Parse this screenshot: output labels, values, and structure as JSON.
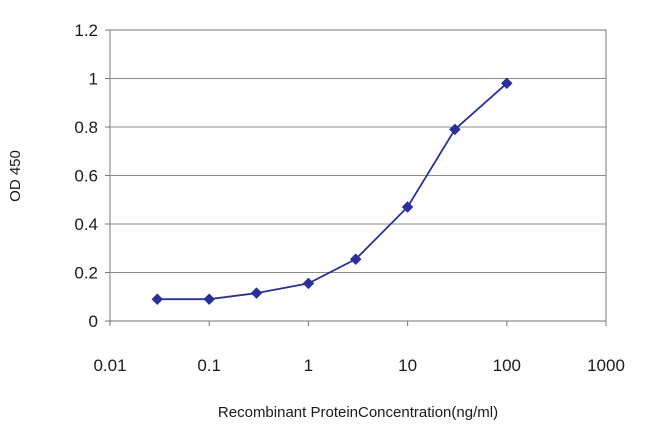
{
  "chart_data": {
    "type": "line",
    "title": "",
    "xlabel": "Recombinant ProteinConcentration(ng/ml)",
    "ylabel": "OD 450",
    "xscale": "log",
    "xlim": [
      0.01,
      1000
    ],
    "ylim": [
      0,
      1.2
    ],
    "xticks": [
      "0.01",
      "0.1",
      "1",
      "10",
      "100",
      "1000"
    ],
    "yticks": [
      "0",
      "0.2",
      "0.4",
      "0.6",
      "0.8",
      "1",
      "1.2"
    ],
    "grid": "horizontal",
    "legend": "none",
    "series": [
      {
        "x": [
          0.03,
          0.1,
          0.3,
          1,
          3,
          10,
          30,
          100
        ],
        "y": [
          0.09,
          0.09,
          0.115,
          0.155,
          0.255,
          0.47,
          0.79,
          0.98
        ],
        "color": "#2b2f9e",
        "marker": "diamond"
      }
    ]
  }
}
